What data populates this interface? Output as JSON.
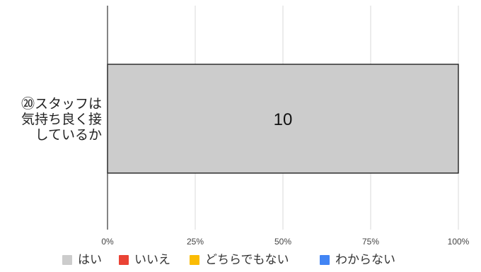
{
  "chart_data": {
    "type": "bar",
    "orientation": "horizontal",
    "stacked": "percent",
    "categories": [
      "⑳スタッフは気持ち良く接しているか"
    ],
    "category_label_lines": [
      "⑳スタッフは",
      "気持ち良く接",
      "しているか"
    ],
    "series": [
      {
        "name": "はい",
        "values": [
          10
        ],
        "color": "#cccccc"
      },
      {
        "name": "いいえ",
        "values": [
          0
        ],
        "color": "#ea4335"
      },
      {
        "name": "どちらでもない",
        "values": [
          0
        ],
        "color": "#fbbc04"
      },
      {
        "name": "わからない",
        "values": [
          0
        ],
        "color": "#4285f4"
      }
    ],
    "data_labels": [
      "10"
    ],
    "x_ticks": [
      "0%",
      "25%",
      "50%",
      "75%",
      "100%"
    ],
    "xlim": [
      0,
      100
    ],
    "grid": true,
    "legend_position": "bottom"
  }
}
